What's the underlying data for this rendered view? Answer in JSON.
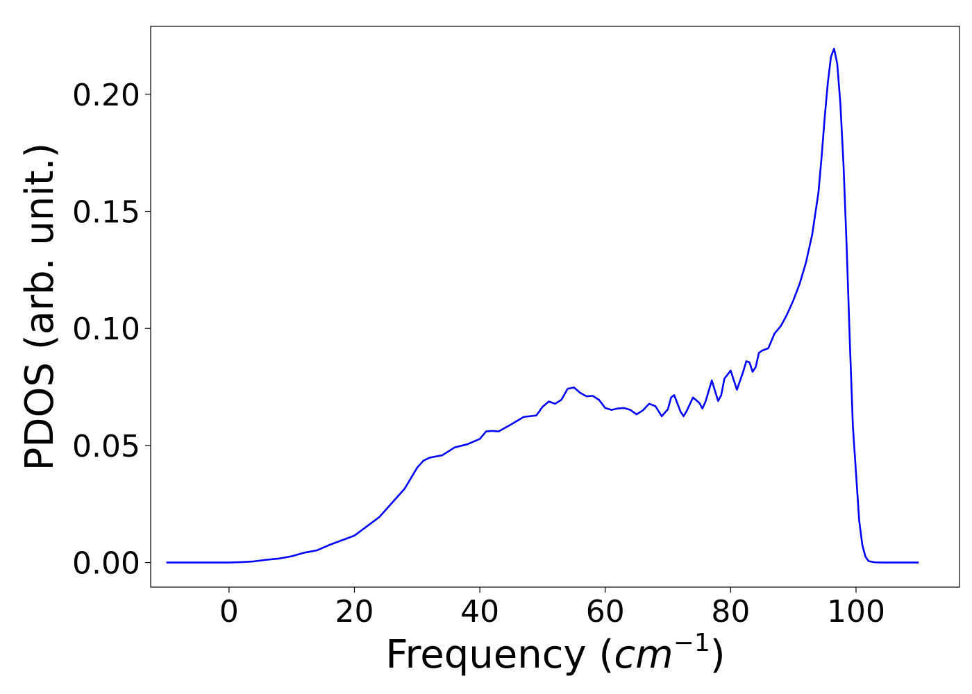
{
  "chart_data": {
    "type": "line",
    "xlabel": "Frequency (",
    "xlabel_math_base": "cm",
    "xlabel_math_exp": "−1",
    "xlabel_close": ")",
    "ylabel": "PDOS (arb. unit.)",
    "xlim": [
      -12.5,
      116.5
    ],
    "ylim": [
      -0.0105,
      0.229
    ],
    "x_ticks": [
      0,
      20,
      40,
      60,
      80,
      100
    ],
    "x_tick_labels": [
      "0",
      "20",
      "40",
      "60",
      "80",
      "100"
    ],
    "y_ticks": [
      0.0,
      0.05,
      0.1,
      0.15,
      0.2
    ],
    "y_tick_labels": [
      "0.00",
      "0.05",
      "0.10",
      "0.15",
      "0.20"
    ],
    "grid": false,
    "series": [
      {
        "color": "#0000ff",
        "points": [
          [
            -10,
            0.0
          ],
          [
            -5,
            0.0
          ],
          [
            0,
            0.0
          ],
          [
            2,
            0.0002
          ],
          [
            4,
            0.0005
          ],
          [
            6,
            0.0012
          ],
          [
            8,
            0.0017
          ],
          [
            10,
            0.0027
          ],
          [
            12,
            0.0042
          ],
          [
            14,
            0.0052
          ],
          [
            16,
            0.0075
          ],
          [
            18,
            0.0095
          ],
          [
            20,
            0.0115
          ],
          [
            22,
            0.0155
          ],
          [
            24,
            0.0195
          ],
          [
            26,
            0.0255
          ],
          [
            28,
            0.0315
          ],
          [
            30,
            0.0405
          ],
          [
            31,
            0.0435
          ],
          [
            32,
            0.0448
          ],
          [
            34,
            0.0458
          ],
          [
            36,
            0.0492
          ],
          [
            38,
            0.0505
          ],
          [
            40,
            0.0528
          ],
          [
            41,
            0.056
          ],
          [
            42,
            0.0562
          ],
          [
            43,
            0.056
          ],
          [
            45,
            0.059
          ],
          [
            47,
            0.0622
          ],
          [
            49,
            0.0628
          ],
          [
            50,
            0.0665
          ],
          [
            51,
            0.0688
          ],
          [
            52,
            0.0678
          ],
          [
            53,
            0.0695
          ],
          [
            54,
            0.0742
          ],
          [
            55,
            0.0748
          ],
          [
            56,
            0.0725
          ],
          [
            57,
            0.071
          ],
          [
            58,
            0.0712
          ],
          [
            59,
            0.0695
          ],
          [
            60,
            0.066
          ],
          [
            61,
            0.0652
          ],
          [
            62,
            0.0658
          ],
          [
            63,
            0.066
          ],
          [
            64,
            0.0652
          ],
          [
            65,
            0.0633
          ],
          [
            66,
            0.065
          ],
          [
            67,
            0.0678
          ],
          [
            68,
            0.0668
          ],
          [
            69,
            0.0625
          ],
          [
            70,
            0.0655
          ],
          [
            70.5,
            0.0705
          ],
          [
            71,
            0.0715
          ],
          [
            72,
            0.0645
          ],
          [
            72.5,
            0.0625
          ],
          [
            73,
            0.0648
          ],
          [
            74,
            0.0705
          ],
          [
            75,
            0.0682
          ],
          [
            75.5,
            0.0658
          ],
          [
            76,
            0.0688
          ],
          [
            77,
            0.0778
          ],
          [
            78,
            0.069
          ],
          [
            78.5,
            0.0715
          ],
          [
            79,
            0.0785
          ],
          [
            80,
            0.082
          ],
          [
            81,
            0.0738
          ],
          [
            82,
            0.0815
          ],
          [
            82.5,
            0.086
          ],
          [
            83,
            0.0855
          ],
          [
            83.5,
            0.0815
          ],
          [
            84,
            0.0835
          ],
          [
            84.5,
            0.0895
          ],
          [
            85,
            0.0905
          ],
          [
            86,
            0.0915
          ],
          [
            87,
            0.0978
          ],
          [
            88,
            0.101
          ],
          [
            89,
            0.106
          ],
          [
            90,
            0.112
          ],
          [
            91,
            0.119
          ],
          [
            92,
            0.128
          ],
          [
            93,
            0.14
          ],
          [
            94,
            0.158
          ],
          [
            94.5,
            0.173
          ],
          [
            95,
            0.19
          ],
          [
            95.5,
            0.205
          ],
          [
            96,
            0.216
          ],
          [
            96.5,
            0.2195
          ],
          [
            97,
            0.213
          ],
          [
            97.5,
            0.196
          ],
          [
            98,
            0.17
          ],
          [
            98.5,
            0.135
          ],
          [
            99,
            0.095
          ],
          [
            99.5,
            0.058
          ],
          [
            100,
            0.038
          ],
          [
            100.5,
            0.018
          ],
          [
            101,
            0.0075
          ],
          [
            101.5,
            0.0025
          ],
          [
            102,
            0.0006
          ],
          [
            103,
            0.0001
          ],
          [
            104,
            0.0
          ],
          [
            106,
            0.0
          ],
          [
            110,
            0.0
          ]
        ]
      }
    ]
  }
}
